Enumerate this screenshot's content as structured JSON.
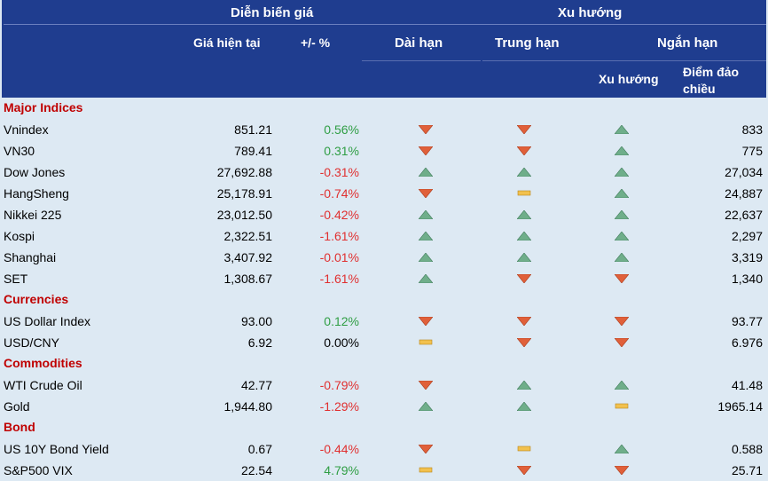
{
  "header": {
    "group_price": "Diễn biến giá",
    "group_trend": "Xu hướng",
    "col_price": "Giá hiện tại",
    "col_change": "+/- %",
    "col_long": "Dài hạn",
    "col_mid": "Trung hạn",
    "col_short": "Ngắn hạn",
    "col_short_trend": "Xu hướng",
    "col_pivot_line1": "Điểm đảo",
    "col_pivot_line2": "chiều"
  },
  "colors": {
    "header_bg": "#1f3d8f",
    "body_bg": "#dde9f3",
    "section_text": "#c00000",
    "positive": "#2f9e44",
    "negative": "#e03030",
    "up_icon": "#6fae8a",
    "down_icon": "#e0603a",
    "flat_icon": "#f2c14e"
  },
  "rows": [
    {
      "type": "section",
      "label": "Major Indices"
    },
    {
      "type": "item",
      "name": "Vnindex",
      "price": "851.21",
      "change": "0.56%",
      "change_sign": "pos",
      "long": "down",
      "mid": "down",
      "short": "up",
      "pivot": "833"
    },
    {
      "type": "item",
      "name": "VN30",
      "price": "789.41",
      "change": "0.31%",
      "change_sign": "pos",
      "long": "down",
      "mid": "down",
      "short": "up",
      "pivot": "775"
    },
    {
      "type": "item",
      "name": "Dow Jones",
      "price": "27,692.88",
      "change": "-0.31%",
      "change_sign": "neg",
      "long": "up",
      "mid": "up",
      "short": "up",
      "pivot": "27,034"
    },
    {
      "type": "item",
      "name": "HangSheng",
      "price": "25,178.91",
      "change": "-0.74%",
      "change_sign": "neg",
      "long": "down",
      "mid": "flat",
      "short": "up",
      "pivot": "24,887"
    },
    {
      "type": "item",
      "name": "Nikkei 225",
      "price": "23,012.50",
      "change": "-0.42%",
      "change_sign": "neg",
      "long": "up",
      "mid": "up",
      "short": "up",
      "pivot": "22,637"
    },
    {
      "type": "item",
      "name": "Kospi",
      "price": "2,322.51",
      "change": "-1.61%",
      "change_sign": "neg",
      "long": "up",
      "mid": "up",
      "short": "up",
      "pivot": "2,297"
    },
    {
      "type": "item",
      "name": "Shanghai",
      "price": "3,407.92",
      "change": "-0.01%",
      "change_sign": "neg",
      "long": "up",
      "mid": "up",
      "short": "up",
      "pivot": "3,319"
    },
    {
      "type": "item",
      "name": "SET",
      "price": "1,308.67",
      "change": "-1.61%",
      "change_sign": "neg",
      "long": "up",
      "mid": "down",
      "short": "down",
      "pivot": "1,340"
    },
    {
      "type": "section",
      "label": "Currencies"
    },
    {
      "type": "item",
      "name": "US Dollar Index",
      "price": "93.00",
      "change": "0.12%",
      "change_sign": "pos",
      "long": "down",
      "mid": "down",
      "short": "down",
      "pivot": "93.77"
    },
    {
      "type": "item",
      "name": "USD/CNY",
      "price": "6.92",
      "change": "0.00%",
      "change_sign": "flat",
      "long": "flat",
      "mid": "down",
      "short": "down",
      "pivot": "6.976"
    },
    {
      "type": "section",
      "label": "Commodities"
    },
    {
      "type": "item",
      "name": "WTI Crude Oil",
      "price": "42.77",
      "change": "-0.79%",
      "change_sign": "neg",
      "long": "down",
      "mid": "up",
      "short": "up",
      "pivot": "41.48"
    },
    {
      "type": "item",
      "name": "Gold",
      "price": "1,944.80",
      "change": "-1.29%",
      "change_sign": "neg",
      "long": "up",
      "mid": "up",
      "short": "flat",
      "pivot": "1965.14"
    },
    {
      "type": "section",
      "label": "Bond"
    },
    {
      "type": "item",
      "name": "US 10Y Bond Yield",
      "price": "0.67",
      "change": "-0.44%",
      "change_sign": "neg",
      "long": "down",
      "mid": "flat",
      "short": "up",
      "pivot": "0.588"
    },
    {
      "type": "item",
      "name": "S&P500 VIX",
      "price": "22.54",
      "change": "4.79%",
      "change_sign": "pos",
      "long": "flat",
      "mid": "down",
      "short": "down",
      "pivot": "25.71"
    }
  ]
}
